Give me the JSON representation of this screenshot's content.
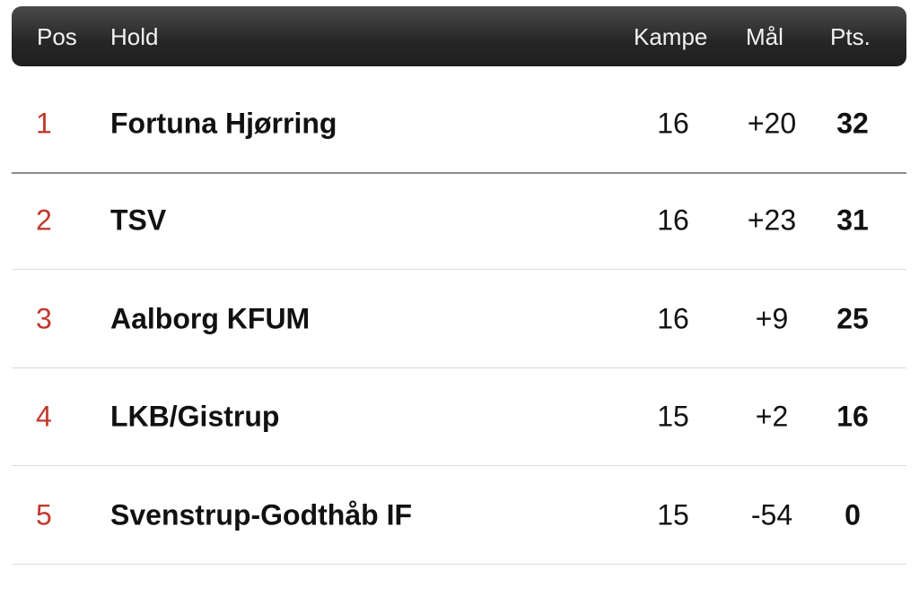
{
  "header": {
    "pos": "Pos",
    "team": "Hold",
    "played": "Kampe",
    "goals": "Mål",
    "points": "Pts."
  },
  "colors": {
    "position": "#c0392b",
    "header_bg": "#262626"
  },
  "rows": [
    {
      "pos": "1",
      "team": "Fortuna Hjørring",
      "played": "16",
      "goals": "+20",
      "points": "32"
    },
    {
      "pos": "2",
      "team": "TSV",
      "played": "16",
      "goals": "+23",
      "points": "31"
    },
    {
      "pos": "3",
      "team": "Aalborg KFUM",
      "played": "16",
      "goals": "+9",
      "points": "25"
    },
    {
      "pos": "4",
      "team": "LKB/Gistrup",
      "played": "15",
      "goals": "+2",
      "points": "16"
    },
    {
      "pos": "5",
      "team": "Svenstrup-Godthåb IF",
      "played": "15",
      "goals": "-54",
      "points": "0"
    }
  ]
}
